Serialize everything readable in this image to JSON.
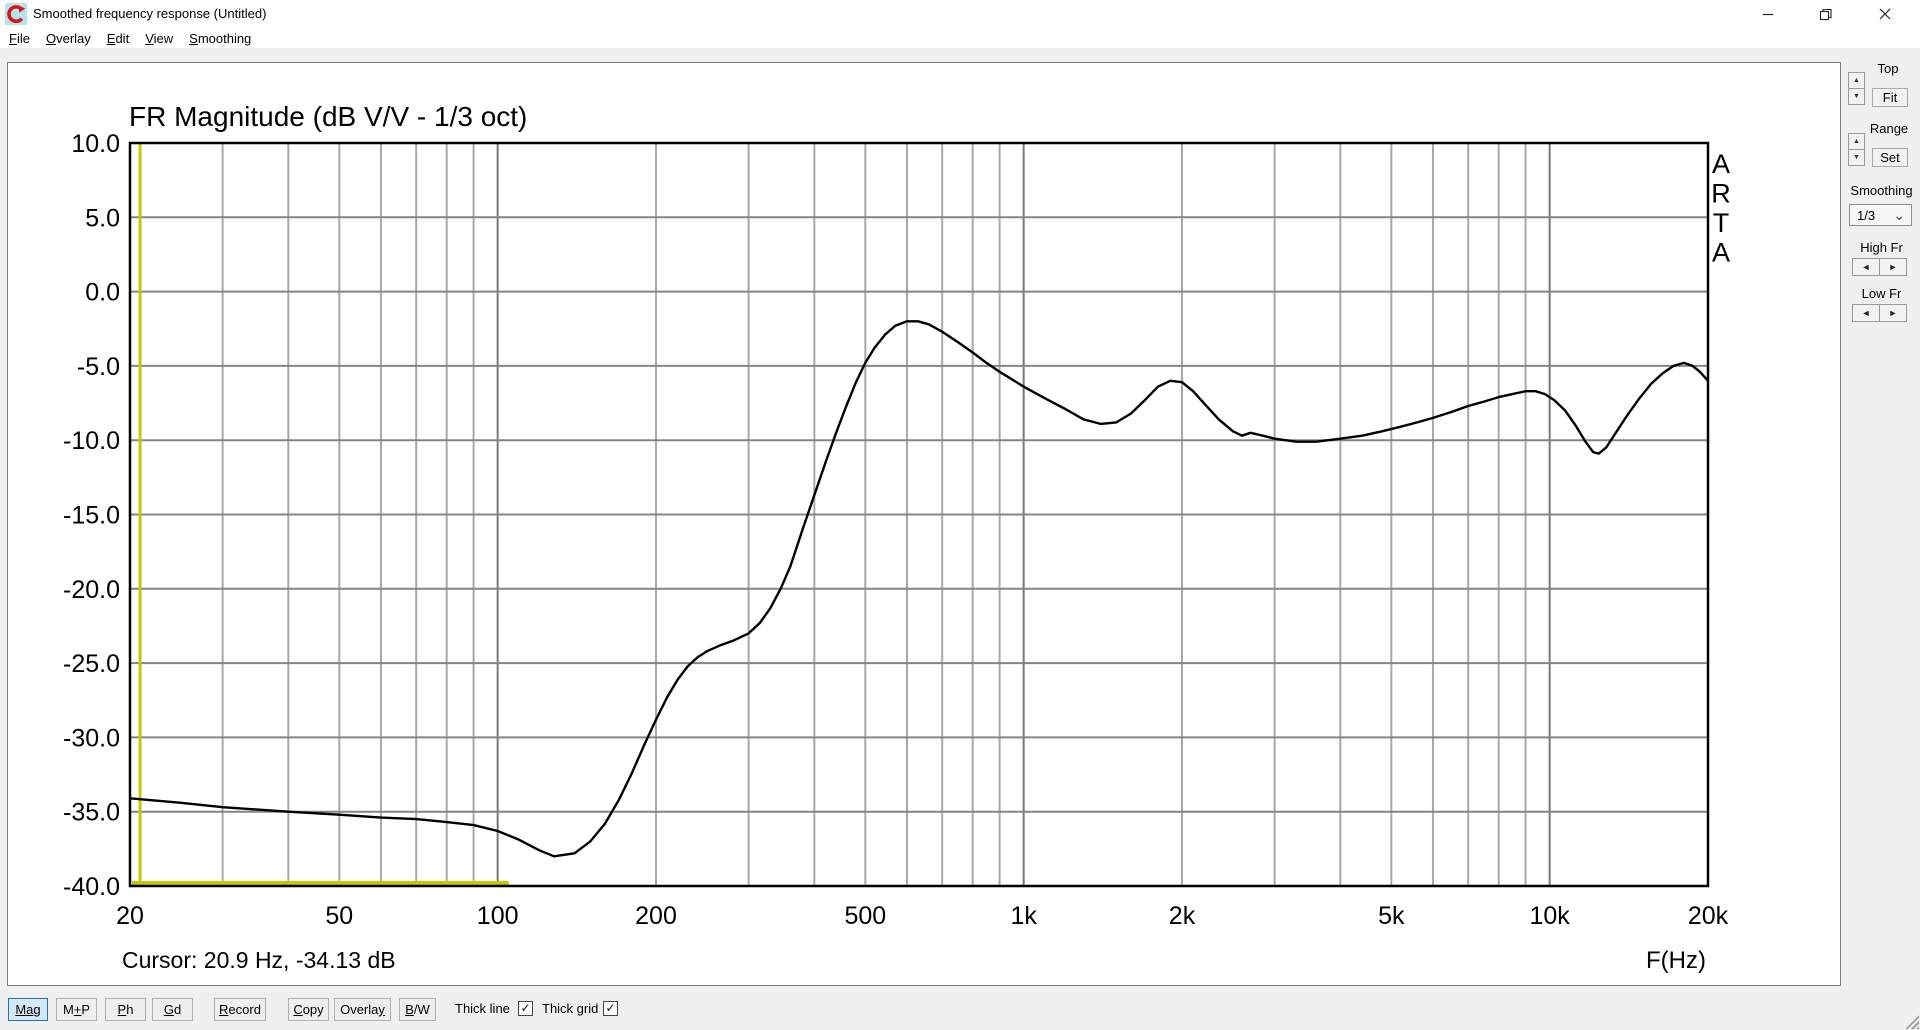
{
  "window": {
    "title": "Smoothed frequency response (Untitled)",
    "app_icon": "arta-red-circular-arrow",
    "controls": [
      "minimize",
      "restore",
      "close"
    ]
  },
  "menu": {
    "items": [
      {
        "pre": "",
        "key": "F",
        "post": "ile"
      },
      {
        "pre": "",
        "key": "O",
        "post": "verlay"
      },
      {
        "pre": "",
        "key": "E",
        "post": "dit"
      },
      {
        "pre": "",
        "key": "V",
        "post": "iew"
      },
      {
        "pre": "",
        "key": "S",
        "post": "moothing"
      }
    ]
  },
  "chart_data": {
    "type": "line",
    "title": "FR Magnitude (dB V/V - 1/3 oct)",
    "xlabel": "F(Hz)",
    "ylabel": "",
    "xscale": "log",
    "xlim": [
      20,
      20000
    ],
    "ylim": [
      -40,
      10
    ],
    "xticks": {
      "labels": [
        "20",
        "50",
        "100",
        "200",
        "500",
        "1k",
        "2k",
        "5k",
        "10k",
        "20k"
      ],
      "values": [
        20,
        50,
        100,
        200,
        500,
        1000,
        2000,
        5000,
        10000,
        20000
      ]
    },
    "yticks": {
      "labels": [
        "10.0",
        "5.0",
        "0.0",
        "-5.0",
        "-10.0",
        "-15.0",
        "-20.0",
        "-25.0",
        "-30.0",
        "-35.0",
        "-40.0"
      ],
      "values": [
        10,
        5,
        0,
        -5,
        -10,
        -15,
        -20,
        -25,
        -30,
        -35,
        -40
      ]
    },
    "x_minor_gridlines": [
      30,
      40,
      50,
      60,
      70,
      80,
      90,
      200,
      300,
      400,
      500,
      600,
      700,
      800,
      900,
      2000,
      3000,
      4000,
      5000,
      6000,
      7000,
      8000,
      9000
    ],
    "x_major_gridlines": [
      100,
      1000,
      10000
    ],
    "grid": true,
    "thick_grid": true,
    "thick_line": true,
    "watermark": "ARTA",
    "cursor": {
      "freq": 20.9,
      "db": -34.13,
      "readout": "Cursor: 20.9 Hz, -34.13 dB"
    },
    "marker": {
      "start_freq": 20,
      "end_freq": 105
    },
    "colors": {
      "curve": "#000000",
      "cursor_yellow": "#c8c800",
      "grid_h": "#858585",
      "grid_v_minor": "#a8a8a8",
      "grid_v_major": "#787878",
      "border": "#000000"
    },
    "series": [
      {
        "name": "FR magnitude (dB V/V)",
        "points": [
          [
            20,
            -34.1
          ],
          [
            25,
            -34.4
          ],
          [
            30,
            -34.7
          ],
          [
            40,
            -35.0
          ],
          [
            50,
            -35.2
          ],
          [
            60,
            -35.4
          ],
          [
            70,
            -35.5
          ],
          [
            80,
            -35.7
          ],
          [
            90,
            -35.9
          ],
          [
            100,
            -36.3
          ],
          [
            110,
            -36.9
          ],
          [
            120,
            -37.6
          ],
          [
            128,
            -38.0
          ],
          [
            140,
            -37.8
          ],
          [
            150,
            -37.0
          ],
          [
            160,
            -35.8
          ],
          [
            170,
            -34.2
          ],
          [
            180,
            -32.4
          ],
          [
            190,
            -30.5
          ],
          [
            200,
            -28.8
          ],
          [
            210,
            -27.3
          ],
          [
            220,
            -26.1
          ],
          [
            230,
            -25.2
          ],
          [
            240,
            -24.6
          ],
          [
            250,
            -24.2
          ],
          [
            265,
            -23.8
          ],
          [
            280,
            -23.5
          ],
          [
            300,
            -23.0
          ],
          [
            315,
            -22.3
          ],
          [
            330,
            -21.3
          ],
          [
            345,
            -20.0
          ],
          [
            360,
            -18.5
          ],
          [
            380,
            -16.0
          ],
          [
            400,
            -13.7
          ],
          [
            420,
            -11.5
          ],
          [
            440,
            -9.5
          ],
          [
            460,
            -7.7
          ],
          [
            480,
            -6.1
          ],
          [
            500,
            -4.8
          ],
          [
            520,
            -3.8
          ],
          [
            545,
            -2.9
          ],
          [
            570,
            -2.3
          ],
          [
            600,
            -2.0
          ],
          [
            630,
            -2.0
          ],
          [
            660,
            -2.2
          ],
          [
            700,
            -2.7
          ],
          [
            750,
            -3.4
          ],
          [
            800,
            -4.1
          ],
          [
            850,
            -4.8
          ],
          [
            900,
            -5.4
          ],
          [
            950,
            -5.9
          ],
          [
            1000,
            -6.4
          ],
          [
            1100,
            -7.2
          ],
          [
            1200,
            -7.9
          ],
          [
            1300,
            -8.6
          ],
          [
            1400,
            -8.9
          ],
          [
            1500,
            -8.8
          ],
          [
            1600,
            -8.2
          ],
          [
            1700,
            -7.3
          ],
          [
            1800,
            -6.4
          ],
          [
            1900,
            -6.0
          ],
          [
            2000,
            -6.1
          ],
          [
            2100,
            -6.7
          ],
          [
            2200,
            -7.5
          ],
          [
            2350,
            -8.6
          ],
          [
            2500,
            -9.4
          ],
          [
            2600,
            -9.7
          ],
          [
            2700,
            -9.5
          ],
          [
            2850,
            -9.7
          ],
          [
            3000,
            -9.9
          ],
          [
            3300,
            -10.1
          ],
          [
            3600,
            -10.1
          ],
          [
            4000,
            -9.9
          ],
          [
            4400,
            -9.7
          ],
          [
            4800,
            -9.4
          ],
          [
            5200,
            -9.1
          ],
          [
            5600,
            -8.8
          ],
          [
            6000,
            -8.5
          ],
          [
            6500,
            -8.1
          ],
          [
            7000,
            -7.7
          ],
          [
            7500,
            -7.4
          ],
          [
            8000,
            -7.1
          ],
          [
            8500,
            -6.9
          ],
          [
            9000,
            -6.7
          ],
          [
            9400,
            -6.7
          ],
          [
            9800,
            -6.9
          ],
          [
            10200,
            -7.3
          ],
          [
            10700,
            -8.0
          ],
          [
            11200,
            -9.0
          ],
          [
            11700,
            -10.1
          ],
          [
            12100,
            -10.8
          ],
          [
            12400,
            -10.9
          ],
          [
            12800,
            -10.5
          ],
          [
            13300,
            -9.6
          ],
          [
            14000,
            -8.4
          ],
          [
            14800,
            -7.2
          ],
          [
            15600,
            -6.2
          ],
          [
            16400,
            -5.5
          ],
          [
            17200,
            -5.0
          ],
          [
            18000,
            -4.8
          ],
          [
            18700,
            -5.0
          ],
          [
            19300,
            -5.4
          ],
          [
            20000,
            -6.0
          ]
        ]
      }
    ]
  },
  "sidebar": {
    "top_label": "Top",
    "fit_button": "Fit",
    "range_label": "Range",
    "set_button": "Set",
    "smoothing_label": "Smoothing",
    "smoothing_value": "1/3",
    "high_fr_label": "High Fr",
    "low_fr_label": "Low Fr"
  },
  "toolbar": {
    "buttons": [
      {
        "pre": "",
        "key": "Ma",
        "post": "g",
        "active": true
      },
      {
        "pre": "M",
        "key": "+",
        "post": "P",
        "active": false
      },
      {
        "pre": "",
        "key": "P",
        "post": "h",
        "active": false
      },
      {
        "pre": "",
        "key": "G",
        "post": "d",
        "active": false
      },
      {
        "pre": "",
        "key": "R",
        "post": "ecord",
        "active": false
      },
      {
        "pre": "",
        "key": "C",
        "post": "opy",
        "active": false
      },
      {
        "pre": "Overla",
        "key": "y",
        "post": "",
        "active": false
      },
      {
        "pre": "",
        "key": "B",
        "post": "/W",
        "active": false
      }
    ],
    "thick_line_label": "Thick line",
    "thick_line_checked": true,
    "thick_grid_label": "Thick grid",
    "thick_grid_checked": true
  },
  "icons": {
    "spinner_up": "▲",
    "spinner_down": "▼",
    "arrow_left": "◄",
    "arrow_right": "►",
    "dropdown_chevron": "⌄",
    "checkbox_check": "✓"
  }
}
